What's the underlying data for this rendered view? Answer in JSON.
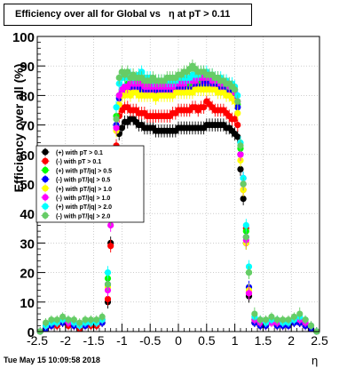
{
  "title": "Efficiency over all for Global vs   η at pT > 0.11",
  "timestamp": "Tue May 15 10:09:58 2018",
  "chart_data": {
    "type": "scatter",
    "title": "Efficiency over all for Global vs   η at pT > 0.11",
    "xlabel": "η",
    "ylabel": "Efficiency over all (%)",
    "xlim": [
      -2.5,
      2.5
    ],
    "ylim": [
      0,
      100
    ],
    "xticks": [
      "-2.5",
      "-2",
      "-1.5",
      "-1",
      "-0.5",
      "0",
      "0.5",
      "1",
      "1.5",
      "2",
      "2.5"
    ],
    "yticks": [
      "0",
      "10",
      "20",
      "30",
      "40",
      "50",
      "60",
      "70",
      "80",
      "90",
      "100"
    ],
    "grid": true,
    "legend_position": "left-middle",
    "x": [
      -2.45,
      -2.35,
      -2.25,
      -2.15,
      -2.05,
      -1.95,
      -1.85,
      -1.75,
      -1.65,
      -1.55,
      -1.45,
      -1.35,
      -1.25,
      -1.2,
      -1.15,
      -1.1,
      -1.05,
      -1.0,
      -0.95,
      -0.9,
      -0.85,
      -0.8,
      -0.75,
      -0.7,
      -0.65,
      -0.6,
      -0.55,
      -0.5,
      -0.45,
      -0.4,
      -0.35,
      -0.3,
      -0.25,
      -0.2,
      -0.15,
      -0.1,
      -0.05,
      0.0,
      0.05,
      0.1,
      0.15,
      0.2,
      0.25,
      0.3,
      0.35,
      0.4,
      0.45,
      0.5,
      0.55,
      0.6,
      0.65,
      0.7,
      0.75,
      0.8,
      0.85,
      0.9,
      0.95,
      1.0,
      1.05,
      1.1,
      1.15,
      1.2,
      1.25,
      1.35,
      1.45,
      1.55,
      1.65,
      1.75,
      1.85,
      1.95,
      2.05,
      2.15,
      2.25,
      2.35,
      2.45
    ],
    "series": [
      {
        "name": "(+) with pT > 0.1",
        "color": "#000000",
        "values": [
          0,
          1,
          2,
          2,
          3,
          2,
          2,
          1,
          2,
          2,
          2,
          3,
          10,
          30,
          45,
          62,
          67,
          69,
          71,
          71,
          72,
          72,
          71,
          70,
          70,
          69,
          69,
          69,
          69,
          68,
          68,
          68,
          68,
          68,
          68,
          68,
          68,
          69,
          69,
          69,
          69,
          69,
          69,
          69,
          69,
          69,
          69,
          70,
          70,
          70,
          70,
          70,
          70,
          70,
          69,
          69,
          68,
          67,
          66,
          55,
          45,
          30,
          12,
          3,
          2,
          2,
          3,
          2,
          2,
          2,
          3,
          3,
          2,
          1,
          0
        ]
      },
      {
        "name": "(-) with pT > 0.1",
        "color": "#ff0000",
        "values": [
          0,
          1,
          2,
          2,
          3,
          2,
          2,
          1,
          2,
          2,
          2,
          3,
          11,
          29,
          44,
          63,
          73,
          75,
          76,
          76,
          75,
          75,
          75,
          74,
          74,
          74,
          73,
          73,
          73,
          73,
          73,
          73,
          73,
          73,
          73,
          74,
          74,
          75,
          75,
          75,
          75,
          75,
          76,
          76,
          75,
          76,
          76,
          78,
          77,
          76,
          75,
          75,
          75,
          75,
          74,
          73,
          72,
          72,
          70,
          60,
          48,
          35,
          13,
          3,
          2,
          2,
          3,
          2,
          2,
          2,
          3,
          3,
          2,
          1,
          0
        ]
      },
      {
        "name": "(+) with pT/|q| > 0.5",
        "color": "#00ff00",
        "values": [
          0,
          2,
          3,
          3,
          4,
          3,
          3,
          2,
          3,
          3,
          3,
          4,
          18,
          40,
          55,
          73,
          80,
          82,
          83,
          84,
          84,
          85,
          85,
          84,
          84,
          84,
          84,
          83,
          83,
          82,
          83,
          83,
          83,
          83,
          83,
          84,
          84,
          84,
          84,
          84,
          84,
          84,
          85,
          85,
          85,
          85,
          85,
          84,
          84,
          84,
          84,
          83,
          83,
          82,
          82,
          82,
          81,
          80,
          77,
          62,
          50,
          34,
          20,
          4,
          3,
          3,
          3,
          3,
          3,
          3,
          4,
          4,
          3,
          2,
          0
        ]
      },
      {
        "name": "(-) with pT/|q| > 0.5",
        "color": "#0000ff",
        "values": [
          0,
          1,
          2,
          3,
          3,
          3,
          2,
          2,
          2,
          3,
          3,
          3,
          16,
          39,
          52,
          70,
          79,
          81,
          82,
          82,
          83,
          82,
          82,
          82,
          82,
          81,
          81,
          81,
          81,
          81,
          81,
          81,
          81,
          81,
          81,
          81,
          82,
          82,
          82,
          82,
          82,
          82,
          82,
          83,
          83,
          83,
          84,
          84,
          84,
          84,
          83,
          83,
          82,
          82,
          81,
          81,
          80,
          79,
          76,
          60,
          52,
          32,
          15,
          3,
          2,
          2,
          3,
          2,
          2,
          2,
          3,
          3,
          2,
          1,
          0
        ]
      },
      {
        "name": "(+) with pT/|q| > 1.0",
        "color": "#ffff00",
        "values": [
          0,
          2,
          3,
          3,
          4,
          4,
          3,
          2,
          3,
          3,
          3,
          4,
          15,
          38,
          50,
          68,
          77,
          80,
          80,
          81,
          80,
          81,
          81,
          80,
          80,
          80,
          80,
          80,
          80,
          79,
          80,
          80,
          80,
          80,
          80,
          80,
          81,
          81,
          81,
          81,
          81,
          81,
          81,
          82,
          82,
          82,
          82,
          82,
          82,
          82,
          82,
          81,
          81,
          81,
          80,
          80,
          79,
          78,
          74,
          58,
          48,
          30,
          14,
          4,
          3,
          3,
          3,
          3,
          3,
          3,
          4,
          4,
          3,
          2,
          0
        ]
      },
      {
        "name": "(-) with pT/|q| > 1.0",
        "color": "#ff00ff",
        "values": [
          0,
          2,
          3,
          3,
          4,
          3,
          3,
          2,
          3,
          3,
          3,
          4,
          14,
          36,
          48,
          69,
          80,
          82,
          83,
          83,
          84,
          84,
          84,
          84,
          84,
          83,
          83,
          83,
          83,
          83,
          83,
          83,
          83,
          83,
          83,
          83,
          84,
          84,
          84,
          84,
          85,
          85,
          85,
          85,
          86,
          86,
          86,
          86,
          86,
          85,
          85,
          85,
          84,
          84,
          84,
          83,
          83,
          81,
          78,
          60,
          50,
          31,
          13,
          4,
          3,
          3,
          3,
          3,
          3,
          3,
          4,
          4,
          3,
          2,
          0
        ]
      },
      {
        "name": "(+) with pT/|q| > 2.0",
        "color": "#00ffff",
        "values": [
          0,
          2,
          3,
          3,
          4,
          4,
          3,
          2,
          3,
          3,
          3,
          4,
          20,
          42,
          60,
          76,
          84,
          86,
          86,
          87,
          87,
          86,
          86,
          87,
          88,
          86,
          86,
          86,
          85,
          85,
          85,
          85,
          85,
          85,
          85,
          85,
          85,
          86,
          86,
          86,
          86,
          86,
          87,
          87,
          87,
          88,
          88,
          88,
          87,
          87,
          86,
          86,
          86,
          85,
          85,
          84,
          84,
          83,
          80,
          64,
          52,
          36,
          22,
          5,
          4,
          3,
          4,
          4,
          3,
          3,
          4,
          5,
          4,
          2,
          0
        ]
      },
      {
        "name": "(-) with pT/|q| > 2.0",
        "color": "#66cc66",
        "values": [
          0,
          3,
          4,
          4,
          5,
          4,
          4,
          3,
          4,
          4,
          4,
          5,
          16,
          38,
          54,
          72,
          86,
          88,
          87,
          88,
          86,
          87,
          86,
          86,
          86,
          85,
          85,
          85,
          86,
          85,
          85,
          85,
          85,
          86,
          86,
          86,
          86,
          87,
          87,
          88,
          88,
          89,
          90,
          89,
          88,
          88,
          88,
          87,
          87,
          87,
          86,
          86,
          85,
          85,
          84,
          84,
          83,
          82,
          78,
          63,
          50,
          32,
          20,
          6,
          4,
          4,
          5,
          4,
          4,
          4,
          5,
          6,
          4,
          2,
          0
        ]
      }
    ]
  }
}
